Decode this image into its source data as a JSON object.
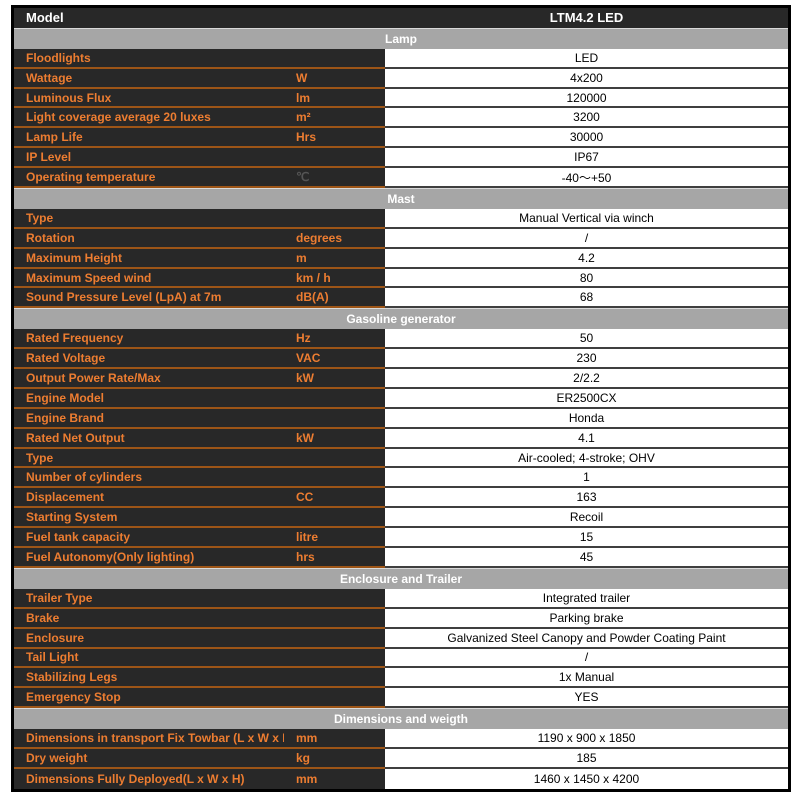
{
  "table": {
    "model_row": {
      "label": "Model",
      "value": "LTM4.2 LED"
    },
    "colors": {
      "dark_bg": "#282828",
      "accent_orange": "#ED7D31",
      "row_border_orange": "#9D5517",
      "section_gray": "#A6A6A6",
      "value_border": "#3F3F3F"
    },
    "sections": [
      {
        "title": "Lamp",
        "rows": [
          {
            "label": "Floodlights",
            "unit": "",
            "value": "LED"
          },
          {
            "label": "Wattage",
            "unit": "W",
            "value": "4x200"
          },
          {
            "label": "Luminous Flux",
            "unit": "lm",
            "value": "120000"
          },
          {
            "label": "Light coverage average 20 luxes",
            "unit": "m²",
            "value": "3200"
          },
          {
            "label": "Lamp Life",
            "unit": "Hrs",
            "value": "30000"
          },
          {
            "label": "IP Level",
            "unit": "",
            "value": "IP67"
          },
          {
            "label": "Operating temperature",
            "unit": "℃",
            "unit_muted": true,
            "value": "-40～+50"
          }
        ]
      },
      {
        "title": "Mast",
        "rows": [
          {
            "label": "Type",
            "unit": "",
            "value": "Manual Vertical via winch"
          },
          {
            "label": "Rotation",
            "unit": "degrees",
            "value": "/"
          },
          {
            "label": "Maximum Height",
            "unit": "m",
            "value": "4.2"
          },
          {
            "label": "Maximum Speed wind",
            "unit": "km / h",
            "value": "80"
          },
          {
            "label": "Sound Pressure Level (LpA) at 7m",
            "unit": "dB(A)",
            "value": "68"
          }
        ]
      },
      {
        "title": "Gasoline generator",
        "rows": [
          {
            "label": "Rated Frequency",
            "unit": "Hz",
            "value": "50"
          },
          {
            "label": "Rated Voltage",
            "unit": "VAC",
            "value": "230"
          },
          {
            "label": "Output Power Rate/Max",
            "unit": "kW",
            "value": "2/2.2"
          },
          {
            "label": "Engine Model",
            "unit": "",
            "value": "ER2500CX"
          },
          {
            "label": "Engine Brand",
            "unit": "",
            "value": "Honda"
          },
          {
            "label": "Rated Net Output",
            "unit": "kW",
            "value": "4.1"
          },
          {
            "label": "Type",
            "unit": "",
            "value": "Air-cooled; 4-stroke; OHV"
          },
          {
            "label": "Number of cylinders",
            "unit": "",
            "value": "1"
          },
          {
            "label": "Displacement",
            "unit": "CC",
            "value": "163"
          },
          {
            "label": "Starting System",
            "unit": "",
            "value": "Recoil"
          },
          {
            "label": "Fuel tank capacity",
            "unit": "litre",
            "value": "15"
          },
          {
            "label": "Fuel Autonomy(Only lighting)",
            "unit": "hrs",
            "value": "45"
          }
        ]
      },
      {
        "title": "Enclosure and Trailer",
        "rows": [
          {
            "label": "Trailer Type",
            "unit": "",
            "value": "Integrated trailer"
          },
          {
            "label": "Brake",
            "unit": "",
            "value": "Parking brake"
          },
          {
            "label": "Enclosure",
            "unit": "",
            "value": "Galvanized Steel Canopy and Powder Coating Paint"
          },
          {
            "label": "Tail Light",
            "unit": "",
            "value": "/"
          },
          {
            "label": "Stabilizing Legs",
            "unit": "",
            "value": "1x Manual"
          },
          {
            "label": "Emergency Stop",
            "unit": "",
            "value": "YES"
          }
        ]
      },
      {
        "title": "Dimensions and weigth",
        "rows": [
          {
            "label": "Dimensions in transport Fix Towbar (L x W x H)",
            "unit": "mm",
            "value": "1190 x 900 x 1850"
          },
          {
            "label": "Dry weight",
            "unit": "kg",
            "value": "185"
          },
          {
            "label": "Dimensions Fully Deployed(L x W x H)",
            "unit": "mm",
            "value": "1460 x 1450 x 4200"
          }
        ]
      }
    ]
  }
}
